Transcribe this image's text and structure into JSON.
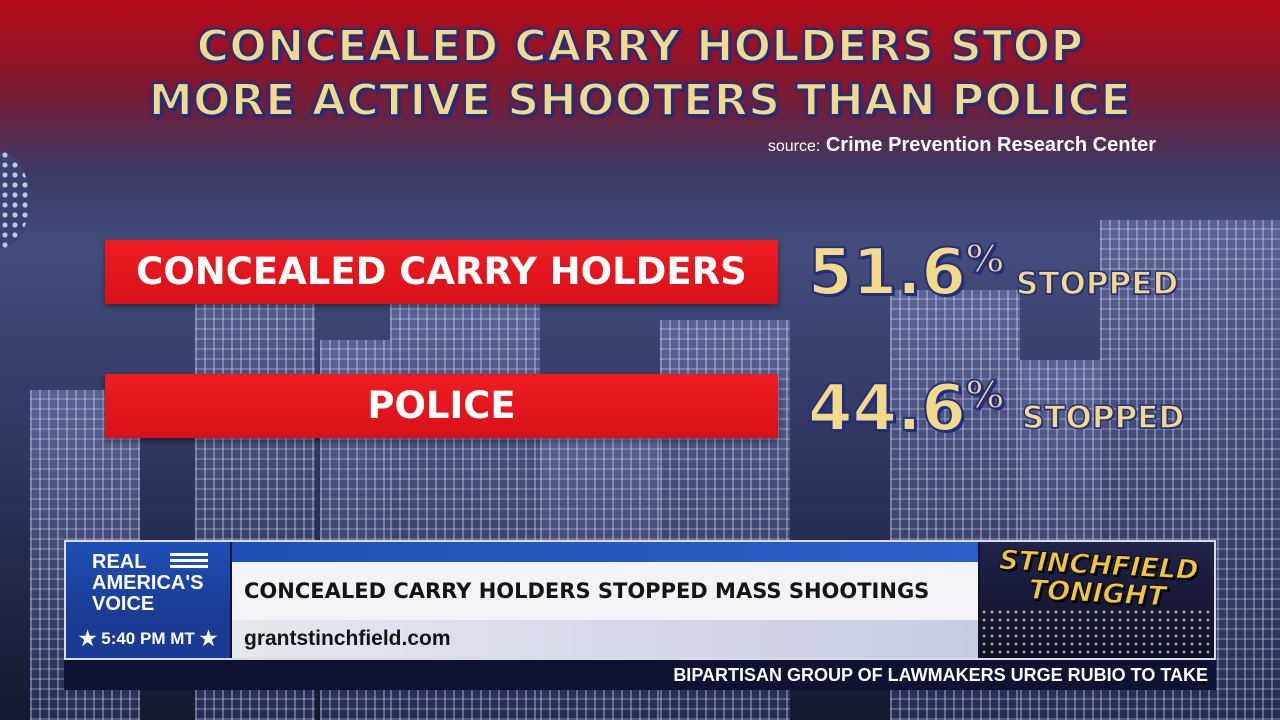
{
  "graphic": {
    "headline_line1": "CONCEALED CARRY HOLDERS STOP",
    "headline_line2": "MORE ACTIVE SHOOTERS THAN POLICE",
    "source_label": "source:",
    "source_name": "Crime Prevention Research Center",
    "rows": [
      {
        "label": "CONCEALED CARRY HOLDERS",
        "value": "51.6",
        "unit": "%",
        "suffix": "STOPPED"
      },
      {
        "label": "POLICE",
        "value": "44.6",
        "unit": "%",
        "suffix": "STOPPED"
      }
    ],
    "colors": {
      "bar": "#e4161e",
      "headline_text": "#f5d98a",
      "outline": "#24307a"
    }
  },
  "lower_third": {
    "network_logo_line1": "REAL",
    "network_logo_line2": "AMERICA'S",
    "network_logo_line3": "VOICE",
    "time": "5:40 PM MT",
    "star_icon": "★",
    "headline": "CONCEALED CARRY HOLDERS STOPPED MASS SHOOTINGS",
    "url": "grantstinchfield.com",
    "show_logo_line1": "STINCHFIELD",
    "show_logo_line2": "TONIGHT",
    "ticker": "BIPARTISAN GROUP OF LAWMAKERS URGE RUBIO TO TAKE"
  }
}
